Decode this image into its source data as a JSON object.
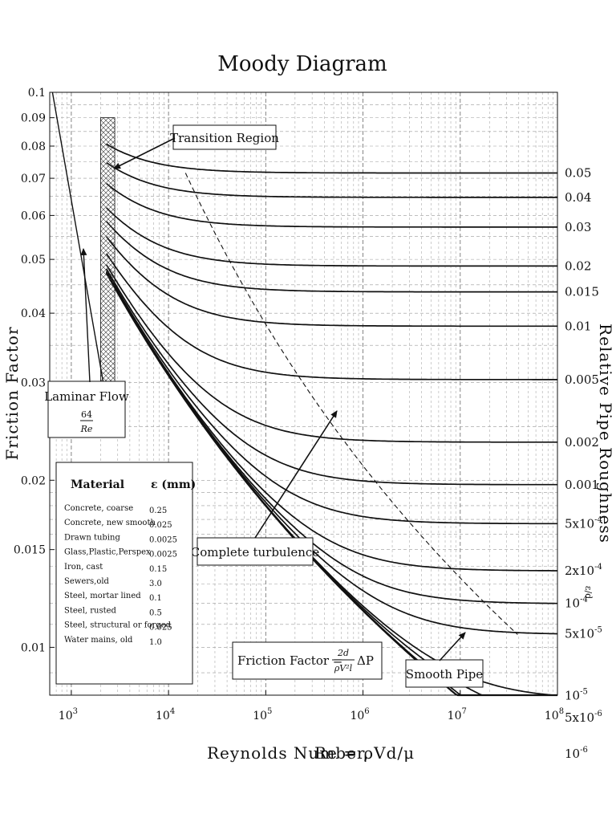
{
  "chart_data": {
    "type": "line",
    "title": "Moody Diagram",
    "ylabel": "Friction Factor",
    "y2label": "Relative Pipe Roughness",
    "y2label_symbol": "ε/d",
    "xlabel_prefix": "Reynolds Number, ",
    "xlabel_formula": "Re = ρVd/μ",
    "xscale": "log",
    "yscale": "log",
    "xlim": [
      600,
      100000000
    ],
    "ylim": [
      0.0082,
      0.1
    ],
    "grid": true,
    "x_ticks": [
      {
        "value": 1000,
        "base": "10",
        "exp": "3"
      },
      {
        "value": 10000,
        "base": "10",
        "exp": "4"
      },
      {
        "value": 100000,
        "base": "10",
        "exp": "5"
      },
      {
        "value": 1000000,
        "base": "10",
        "exp": "6"
      },
      {
        "value": 10000000,
        "base": "10",
        "exp": "7"
      },
      {
        "value": 100000000,
        "base": "10",
        "exp": "8"
      }
    ],
    "y_ticks": [
      {
        "value": 0.1,
        "label": "0.1"
      },
      {
        "value": 0.09,
        "label": "0.09"
      },
      {
        "value": 0.08,
        "label": "0.08"
      },
      {
        "value": 0.07,
        "label": "0.07"
      },
      {
        "value": 0.06,
        "label": "0.06"
      },
      {
        "value": 0.05,
        "label": "0.05"
      },
      {
        "value": 0.04,
        "label": "0.04"
      },
      {
        "value": 0.03,
        "label": "0.03"
      },
      {
        "value": 0.02,
        "label": "0.02"
      },
      {
        "value": 0.015,
        "label": "0.015"
      },
      {
        "value": 0.01,
        "label": "0.01"
      }
    ],
    "roughness_curves": [
      {
        "rr": 0.05,
        "label": "0.05"
      },
      {
        "rr": 0.04,
        "label": "0.04"
      },
      {
        "rr": 0.03,
        "label": "0.03"
      },
      {
        "rr": 0.02,
        "label": "0.02"
      },
      {
        "rr": 0.015,
        "label": "0.015"
      },
      {
        "rr": 0.01,
        "label": "0.01"
      },
      {
        "rr": 0.005,
        "label": "0.005"
      },
      {
        "rr": 0.002,
        "label": "0.002"
      },
      {
        "rr": 0.001,
        "label": "0.001"
      },
      {
        "rr": 0.0005,
        "label": "5x10",
        "exp": "-4"
      },
      {
        "rr": 0.0002,
        "label": "2x10",
        "exp": "-4"
      },
      {
        "rr": 0.0001,
        "label": "10",
        "exp": "-4"
      },
      {
        "rr": 5e-05,
        "label": "5x10",
        "exp": "-5"
      },
      {
        "rr": 1e-05,
        "label": "10",
        "exp": "-5"
      },
      {
        "rr": 5e-06,
        "label": "5x10",
        "exp": "-6"
      },
      {
        "rr": 1e-06,
        "label": "10",
        "exp": "-6"
      },
      {
        "rr": 0,
        "label": ""
      }
    ],
    "laminar": {
      "x": [
        640,
        2300
      ],
      "y": [
        0.1,
        0.0278
      ]
    },
    "transition_region": {
      "x": [
        2000,
        2800
      ],
      "y": [
        0.03,
        0.09
      ]
    },
    "annotations": {
      "transition": "Transition Region",
      "laminar_line1": "Laminar Flow",
      "laminar_num": "64",
      "laminar_den": "Re",
      "complete": "Complete turbulence",
      "smooth": "Smooth Pipe",
      "formula_lhs": "Friction Factor = ",
      "formula_num": "2d",
      "formula_den": "ρV²l",
      "formula_tail": "ΔP"
    },
    "material_table": {
      "header_material": "Material",
      "header_eps": "ε (mm)",
      "rows": [
        {
          "material": "Concrete, coarse",
          "eps": "0.25"
        },
        {
          "material": "Concrete, new smooth",
          "eps": "0.025"
        },
        {
          "material": "Drawn tubing",
          "eps": "0.0025"
        },
        {
          "material": "Glass,Plastic,Perspex",
          "eps": "0.0025"
        },
        {
          "material": "Iron, cast",
          "eps": "0.15"
        },
        {
          "material": "Sewers,old",
          "eps": "3.0"
        },
        {
          "material": "Steel, mortar lined",
          "eps": "0.1"
        },
        {
          "material": "Steel, rusted",
          "eps": "0.5"
        },
        {
          "material": "Steel, structural or forged",
          "eps": "0.025"
        },
        {
          "material": "Water mains, old",
          "eps": "1.0"
        }
      ]
    }
  }
}
